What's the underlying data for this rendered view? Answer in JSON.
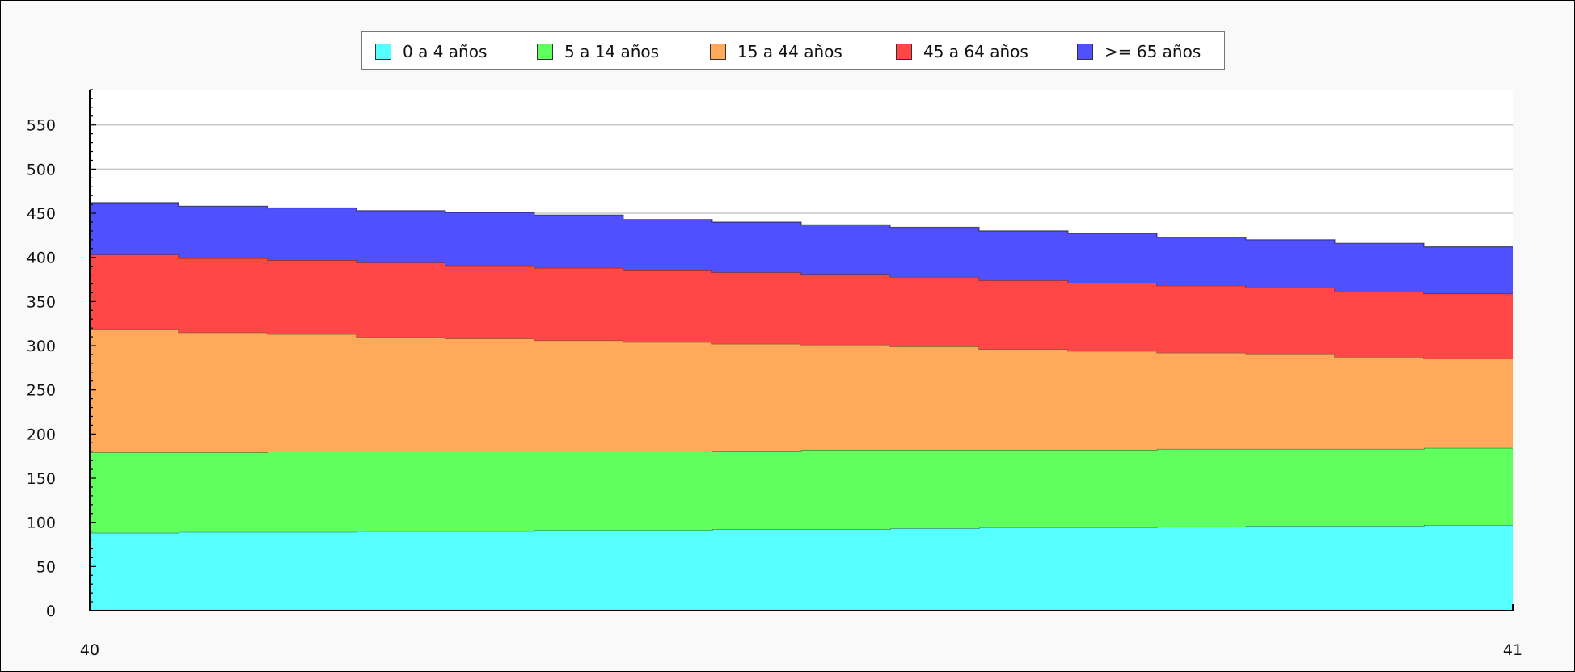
{
  "chart_data": {
    "type": "area",
    "stacked": true,
    "x": [
      40.0,
      40.0625,
      40.125,
      40.1875,
      40.25,
      40.3125,
      40.375,
      40.4375,
      40.5,
      40.5625,
      40.625,
      40.6875,
      40.75,
      40.8125,
      40.875,
      40.9375,
      41.0
    ],
    "x_ticks": [
      "40",
      "41"
    ],
    "xlim": [
      40,
      41
    ],
    "ylim": [
      0,
      590
    ],
    "y_ticks": [
      0,
      50,
      100,
      150,
      200,
      250,
      300,
      350,
      400,
      450,
      500,
      550
    ],
    "grid": true,
    "legend_position": "top-center",
    "series": [
      {
        "name": "0 a 4 años",
        "color": "#55ffff",
        "values": [
          88,
          89,
          89,
          90,
          90,
          91,
          91,
          92,
          92,
          93,
          94,
          94,
          95,
          96,
          96,
          97,
          98
        ]
      },
      {
        "name": "5 a 14 años",
        "color": "#5fff5f",
        "values": [
          91,
          90,
          91,
          90,
          90,
          89,
          89,
          89,
          90,
          89,
          88,
          88,
          88,
          87,
          87,
          87,
          86
        ]
      },
      {
        "name": "15 a 44 años",
        "color": "#ffaa5a",
        "values": [
          140,
          136,
          133,
          130,
          128,
          126,
          124,
          121,
          119,
          117,
          114,
          112,
          109,
          108,
          104,
          101,
          96
        ]
      },
      {
        "name": "45 a 64 años",
        "color": "#ff4747",
        "values": [
          84,
          84,
          84,
          84,
          83,
          82,
          82,
          81,
          80,
          79,
          78,
          77,
          76,
          75,
          74,
          74,
          73
        ]
      },
      {
        "name": ">= 65 años",
        "color": "#5050ff",
        "values": [
          59,
          59,
          59,
          59,
          60,
          60,
          57,
          57,
          56,
          56,
          56,
          56,
          55,
          54,
          55,
          53,
          53
        ]
      }
    ]
  }
}
